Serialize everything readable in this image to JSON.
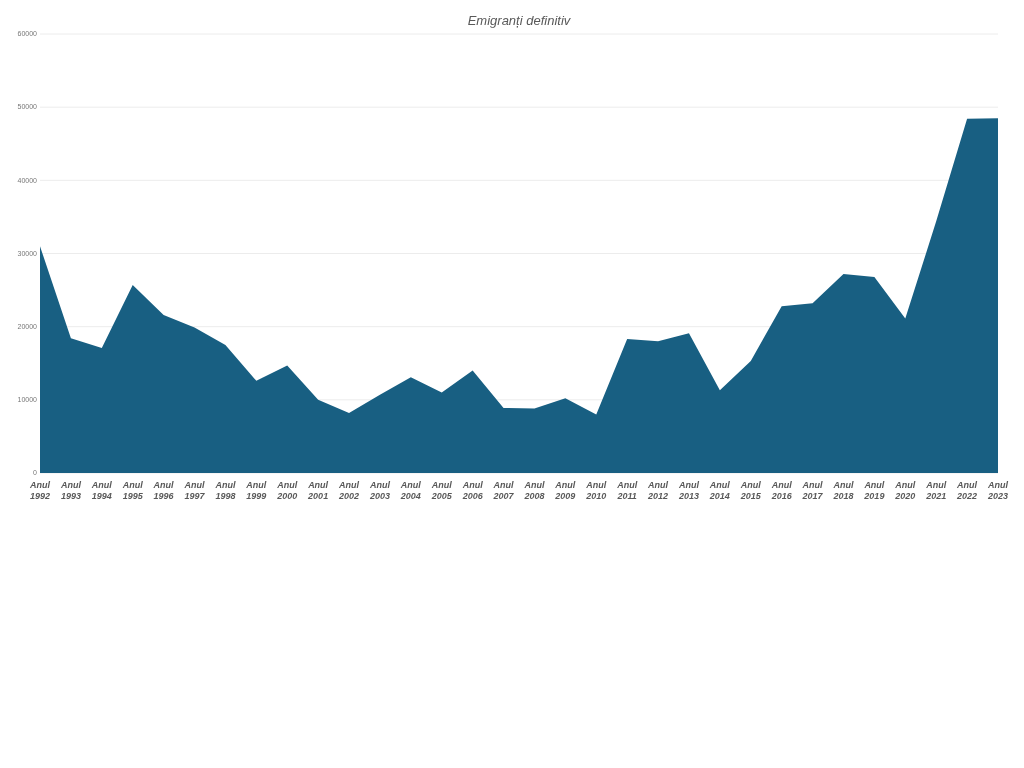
{
  "chart_data": {
    "type": "area",
    "title": "Emigranți definitiv",
    "categories": [
      "Anul 1992",
      "Anul 1993",
      "Anul 1994",
      "Anul 1995",
      "Anul 1996",
      "Anul 1997",
      "Anul 1998",
      "Anul 1999",
      "Anul 2000",
      "Anul 2001",
      "Anul 2002",
      "Anul 2003",
      "Anul 2004",
      "Anul 2005",
      "Anul 2006",
      "Anul 2007",
      "Anul 2008",
      "Anul 2009",
      "Anul 2010",
      "Anul 2011",
      "Anul 2012",
      "Anul 2013",
      "Anul 2014",
      "Anul 2015",
      "Anul 2016",
      "Anul 2017",
      "Anul 2018",
      "Anul 2019",
      "Anul 2020",
      "Anul 2021",
      "Anul 2022",
      "Anul 2023"
    ],
    "series": [
      {
        "color": "#185f82",
        "values": [
          31000,
          18400,
          17100,
          25700,
          21600,
          19900,
          17500,
          12600,
          14700,
          10000,
          8200,
          10700,
          13100,
          11000,
          14000,
          8900,
          8800,
          10200,
          8000,
          18300,
          18000,
          19100,
          11300,
          15300,
          22800,
          23200,
          27200,
          26800,
          21100,
          34400,
          48400,
          48500
        ]
      }
    ],
    "ylim": [
      0,
      60000
    ],
    "yticks": [
      0,
      10000,
      20000,
      30000,
      40000,
      50000,
      60000
    ],
    "grid": "y"
  }
}
